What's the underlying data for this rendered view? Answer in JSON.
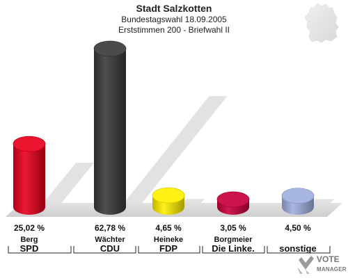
{
  "header": {
    "title": "Stadt Salzkotten",
    "subtitle": "Bundestagswahl 18.09.2005",
    "subtitle2": "Erststimmen 200 - Briefwahl II"
  },
  "chart_data": {
    "type": "bar",
    "title": "Stadt Salzkotten",
    "categories": [
      "SPD",
      "CDU",
      "FDP",
      "Die Linke.",
      "sonstige"
    ],
    "candidates": [
      "Berg",
      "Wächter",
      "Heineke",
      "Borgmeier",
      ""
    ],
    "value_labels": [
      "25,02 %",
      "62,78 %",
      "4,65 %",
      "3,05 %",
      "4,50 %"
    ],
    "values": [
      25.02,
      62.78,
      4.65,
      3.05,
      4.5
    ],
    "colors": [
      "#e8001c",
      "#3b3b3b",
      "#fff000",
      "#c8003c",
      "#a0b0e0"
    ],
    "ylim": [
      0,
      62.78
    ],
    "grid": false,
    "legend": "none"
  },
  "logo": {
    "line1": "VOTE",
    "line2": "MANAGER"
  }
}
